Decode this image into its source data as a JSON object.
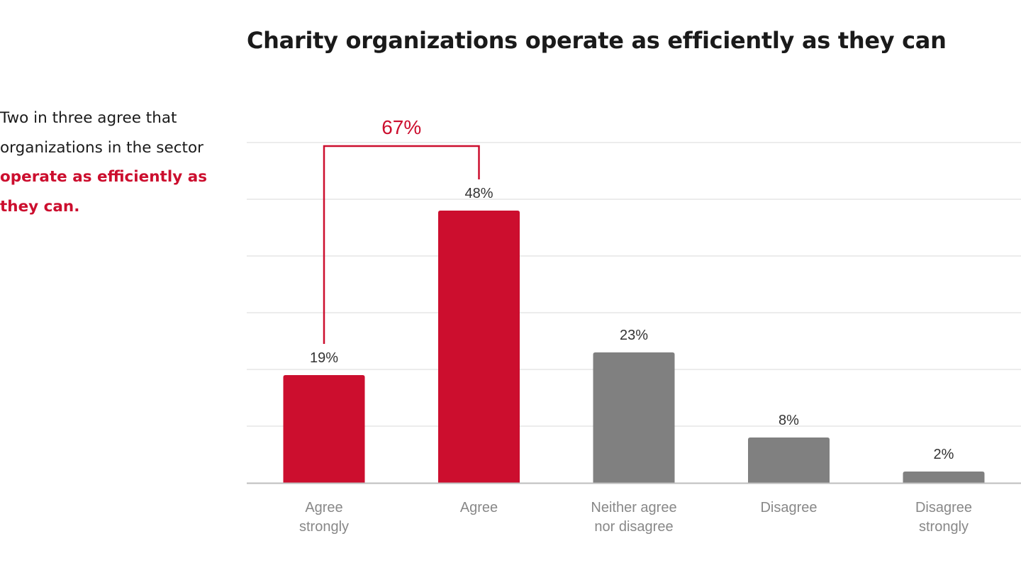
{
  "header": {
    "title": "Charity organizations operate as efficiently as they can"
  },
  "sidebar": {
    "text_plain": "Two in three agree that organizations in the sector ",
    "text_highlight": "operate as efficiently as they can."
  },
  "colors": {
    "highlight": "#cc0e2e",
    "neutral": "#808080",
    "grid": "#e6e6e6",
    "axis": "#bdbdbd"
  },
  "chart_data": {
    "type": "bar",
    "categories": [
      [
        "Agree",
        "strongly"
      ],
      [
        "Agree"
      ],
      [
        "Neither agree",
        "nor disagree"
      ],
      [
        "Disagree"
      ],
      [
        "Disagree",
        "strongly"
      ]
    ],
    "values": [
      19,
      48,
      23,
      8,
      2
    ],
    "value_labels": [
      "19%",
      "48%",
      "23%",
      "8%",
      "2%"
    ],
    "highlighted": [
      true,
      true,
      false,
      false,
      false
    ],
    "ylim": [
      0,
      60
    ],
    "grid": true,
    "bracket": {
      "from_index": 0,
      "to_index": 1,
      "label": "67%"
    }
  }
}
